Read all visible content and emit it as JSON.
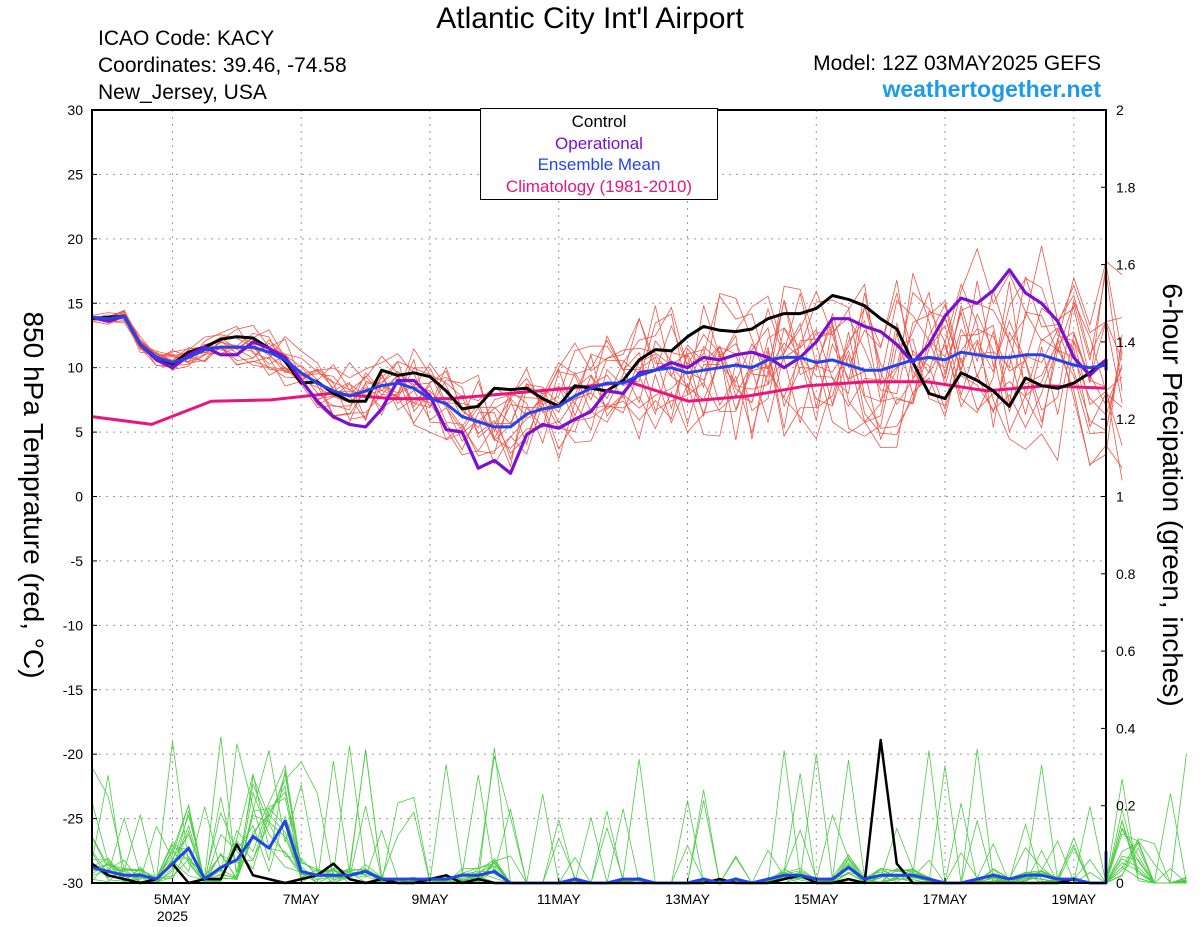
{
  "header": {
    "title": "Atlantic City Int'l Airport",
    "icao": "ICAO Code: KACY",
    "coordinates": "Coordinates: 39.46, -74.58",
    "region": "New_Jersey, USA",
    "model": "Model: 12Z 03MAY2025 GEFS",
    "brand": "weathertogether.net"
  },
  "colors": {
    "control": "#000000",
    "operational": "#7a10d0",
    "ensemble_mean": "#2244ee",
    "climatology": "#e8157f",
    "members_temp": "#ee5548",
    "members_precip": "#4ccc44"
  },
  "chart_data": {
    "type": "line",
    "title": "Atlantic City Int'l Airport",
    "ylabel": "850 hPa Temprature (red, °C)",
    "y2label": "6-hour Precipation (green, inches)",
    "ylim": [
      -30,
      30
    ],
    "y2lim": [
      0,
      2
    ],
    "yticks": [
      30,
      25,
      20,
      15,
      10,
      5,
      0,
      -5,
      -10,
      -15,
      -20,
      -25,
      -30
    ],
    "y2ticks": [
      2,
      1.8,
      1.6,
      1.4,
      1.2,
      1,
      0.8,
      0.6,
      0.4,
      0.2,
      0
    ],
    "xlim": [
      "2025-05-03T18",
      "2025-05-19T12"
    ],
    "xticks": [
      {
        "label": "5MAY",
        "sub": "2025",
        "date": "2025-05-05"
      },
      {
        "label": "7MAY",
        "sub": "",
        "date": "2025-05-07"
      },
      {
        "label": "9MAY",
        "sub": "",
        "date": "2025-05-09"
      },
      {
        "label": "11MAY",
        "sub": "",
        "date": "2025-05-11"
      },
      {
        "label": "13MAY",
        "sub": "",
        "date": "2025-05-13"
      },
      {
        "label": "15MAY",
        "sub": "",
        "date": "2025-05-15"
      },
      {
        "label": "17MAY",
        "sub": "",
        "date": "2025-05-17"
      },
      {
        "label": "19MAY",
        "sub": "",
        "date": "2025-05-19"
      }
    ],
    "grid": true,
    "legend_position": "top-center",
    "legend": [
      "Control",
      "Operational",
      "Ensemble Mean",
      "Climatology (1981-2010)"
    ],
    "x_step_hours": 6,
    "series": [
      {
        "name": "Control",
        "axis": "left",
        "values": [
          13.8,
          13.9,
          14.0,
          11.8,
          10.8,
          10.3,
          11.2,
          11.6,
          12.2,
          12.4,
          12.3,
          11.5,
          10.5,
          8.8,
          8.9,
          8.0,
          7.4,
          7.4,
          9.8,
          9.4,
          9.6,
          9.3,
          8.2,
          6.8,
          7.0,
          8.4,
          8.3,
          8.4,
          7.6,
          7.0,
          8.6,
          8.4,
          8.2,
          9.0,
          10.6,
          11.4,
          11.3,
          12.4,
          13.2,
          12.9,
          12.8,
          13.0,
          13.8,
          14.2,
          14.2,
          14.6,
          15.6,
          15.3,
          14.8,
          13.8,
          13.0,
          10.4,
          8.0,
          7.6,
          9.6,
          9.0,
          8.2,
          7.0,
          9.2,
          8.6,
          8.4,
          8.8,
          9.6,
          10.6,
          10.2
        ]
      },
      {
        "name": "Operational",
        "axis": "left",
        "values": [
          13.9,
          13.6,
          14.0,
          11.8,
          10.6,
          10.0,
          11.0,
          11.6,
          11.0,
          11.0,
          12.0,
          11.5,
          10.8,
          9.0,
          7.4,
          6.2,
          5.6,
          5.4,
          6.8,
          9.0,
          9.0,
          7.8,
          5.2,
          5.0,
          2.2,
          2.8,
          1.8,
          4.8,
          5.6,
          5.3,
          6.0,
          6.6,
          8.2,
          8.0,
          9.6,
          9.8,
          10.4,
          10.0,
          10.8,
          10.6,
          11.0,
          11.2,
          10.8,
          10.0,
          10.8,
          12.0,
          13.8,
          13.8,
          13.2,
          12.8,
          11.8,
          10.4,
          11.8,
          14.0,
          15.4,
          15.0,
          16.0,
          17.6,
          15.8,
          15.0,
          13.6,
          10.8,
          9.4,
          10.6,
          9.8
        ]
      },
      {
        "name": "Ensemble Mean",
        "axis": "left",
        "values": [
          13.9,
          13.8,
          14.0,
          11.8,
          10.8,
          10.4,
          10.8,
          11.4,
          11.6,
          11.6,
          11.6,
          11.2,
          10.6,
          9.6,
          8.8,
          8.2,
          7.8,
          8.2,
          8.6,
          8.8,
          8.4,
          7.6,
          7.2,
          6.2,
          5.8,
          5.4,
          5.4,
          6.4,
          6.8,
          7.0,
          7.8,
          8.4,
          8.8,
          8.8,
          9.4,
          9.8,
          10.0,
          9.6,
          9.8,
          10.0,
          10.2,
          10.0,
          10.6,
          10.8,
          10.8,
          10.4,
          10.6,
          10.2,
          9.8,
          9.8,
          10.2,
          10.6,
          10.8,
          10.6,
          11.2,
          11.0,
          10.8,
          10.8,
          11.0,
          11.0,
          10.6,
          10.2,
          10.0,
          10.2,
          10.0
        ]
      },
      {
        "name": "Climatology (1981-2010)",
        "axis": "left",
        "values": [
          6.2,
          5.6,
          7.4,
          7.5,
          8.0,
          7.6,
          7.6,
          8.0,
          8.4,
          8.9,
          7.4,
          7.8,
          8.6,
          8.9,
          8.9,
          8.2,
          8.6,
          8.4
        ]
      },
      {
        "name": "Control precip",
        "axis": "right",
        "values": [
          0.05,
          0.02,
          0.01,
          0.0,
          0.01,
          0.05,
          0.0,
          0.01,
          0.01,
          0.1,
          0.02,
          0.01,
          0.0,
          0.01,
          0.02,
          0.05,
          0.01,
          0.0,
          0.01,
          0.0,
          0.0,
          0.01,
          0.02,
          0.0,
          0.01,
          0.0,
          0.0,
          0.0,
          0.0,
          0.0,
          0.0,
          0.0,
          0.0,
          0.0,
          0.0,
          0.0,
          0.0,
          0.0,
          0.0,
          0.01,
          0.0,
          0.0,
          0.0,
          0.01,
          0.02,
          0.0,
          0.0,
          0.01,
          0.0,
          0.37,
          0.05,
          0.0,
          0.0,
          0.0,
          0.0,
          0.0,
          0.0,
          0.0,
          0.0,
          0.0,
          0.0,
          0.01,
          0.0,
          0.0,
          0.0,
          0.0,
          0.0,
          0.0,
          0.0,
          0.0,
          0.0
        ]
      },
      {
        "name": "Ensemble Mean precip",
        "axis": "right",
        "values": [
          0.04,
          0.03,
          0.02,
          0.02,
          0.01,
          0.05,
          0.09,
          0.01,
          0.04,
          0.06,
          0.12,
          0.09,
          0.16,
          0.03,
          0.02,
          0.02,
          0.02,
          0.03,
          0.01,
          0.01,
          0.01,
          0.01,
          0.01,
          0.02,
          0.02,
          0.03,
          0.0,
          0.0,
          0.0,
          0.0,
          0.01,
          0.0,
          0.0,
          0.01,
          0.01,
          0.0,
          0.0,
          0.0,
          0.01,
          0.0,
          0.01,
          0.0,
          0.01,
          0.02,
          0.02,
          0.01,
          0.01,
          0.04,
          0.01,
          0.02,
          0.02,
          0.02,
          0.01,
          0.0,
          0.0,
          0.01,
          0.02,
          0.01,
          0.02,
          0.02,
          0.01,
          0.01,
          0.0,
          0.0,
          0.08,
          0.05,
          0.0,
          0.0,
          0.01
        ]
      }
    ],
    "ensemble_members_count": 16
  }
}
